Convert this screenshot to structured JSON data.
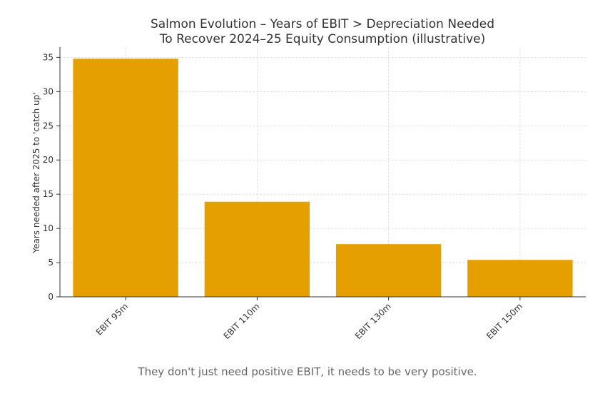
{
  "chart_data": {
    "type": "bar",
    "title_line1": "Salmon Evolution – Years of EBIT > Depreciation Needed",
    "title_line2": "To Recover 2024–25 Equity Consumption (illustrative)",
    "xlabel": "",
    "ylabel": "Years needed after 2025 to 'catch up'",
    "categories": [
      "EBIT 95m",
      "EBIT 110m",
      "EBIT 130m",
      "EBIT 150m"
    ],
    "values": [
      34.8,
      13.9,
      7.7,
      5.4
    ],
    "ylim": [
      0,
      36.5
    ],
    "yticks": [
      0,
      5,
      10,
      15,
      20,
      25,
      30,
      35
    ],
    "grid": true,
    "bar_color": "#E5A000"
  },
  "caption": "They don't just need positive EBIT, it needs to be very positive."
}
